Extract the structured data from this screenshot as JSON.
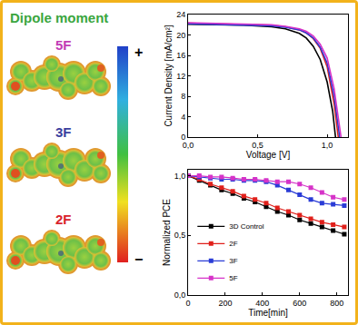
{
  "panel": {
    "title": "Dipole moment",
    "molecules": [
      {
        "label": "5F",
        "color": "#c23bb5"
      },
      {
        "label": "3F",
        "color": "#3a3f9e"
      },
      {
        "label": "2F",
        "color": "#d9232e"
      }
    ],
    "scale_labels": [
      "+",
      "−"
    ]
  },
  "chart_data": [
    {
      "type": "line",
      "x_title": "Voltage [V]",
      "y_title": "Current Density [mA/cm²]",
      "xlim": [
        0,
        1.15
      ],
      "xticks": [
        {
          "value": 0,
          "label": "0,0"
        },
        {
          "value": 0.5,
          "label": "0,5"
        },
        {
          "value": 1.0,
          "label": "1,0"
        }
      ],
      "ylim": [
        0,
        24
      ],
      "yticks": [
        0,
        4,
        8,
        12,
        16,
        20,
        24
      ],
      "grid": false,
      "series": [
        {
          "color": "#000000",
          "line_style": "solid",
          "x": [
            0,
            0.2,
            0.4,
            0.6,
            0.7,
            0.8,
            0.85,
            0.9,
            0.95,
            1.0,
            1.04,
            1.06
          ],
          "values": [
            22.1,
            22.0,
            21.9,
            21.6,
            21.2,
            20.3,
            19.4,
            17.8,
            15.2,
            10.8,
            5.0,
            0
          ]
        },
        {
          "color": "#e0201b",
          "line_style": "solid",
          "x": [
            0,
            0.2,
            0.4,
            0.6,
            0.7,
            0.8,
            0.85,
            0.9,
            0.95,
            1.0,
            1.05,
            1.08
          ],
          "values": [
            22.3,
            22.2,
            22.1,
            21.9,
            21.6,
            21.0,
            20.4,
            19.3,
            17.4,
            13.8,
            6.5,
            0
          ]
        },
        {
          "color": "#2a3cd6",
          "line_style": "solid",
          "x": [
            0,
            0.2,
            0.4,
            0.6,
            0.7,
            0.8,
            0.85,
            0.9,
            0.95,
            1.0,
            1.05,
            1.09
          ],
          "values": [
            22.2,
            22.1,
            22.0,
            21.8,
            21.5,
            21.0,
            20.4,
            19.4,
            17.6,
            14.5,
            8.0,
            0
          ]
        },
        {
          "color": "#d633c8",
          "line_style": "solid",
          "x": [
            0,
            0.2,
            0.4,
            0.6,
            0.7,
            0.8,
            0.85,
            0.9,
            0.95,
            1.0,
            1.05,
            1.1
          ],
          "values": [
            22.4,
            22.3,
            22.2,
            22.0,
            21.7,
            21.2,
            20.7,
            19.8,
            18.2,
            15.5,
            9.5,
            0
          ]
        }
      ]
    },
    {
      "type": "line",
      "x_title": "Time[min]",
      "y_title": "Normalized PCE",
      "x": [
        0,
        60,
        120,
        180,
        240,
        300,
        360,
        420,
        480,
        540,
        600,
        660,
        720,
        780,
        840
      ],
      "xlim": [
        0,
        860
      ],
      "xticks": [
        0,
        200,
        400,
        600,
        800
      ],
      "ylim": [
        0,
        1.05
      ],
      "yticks": [
        {
          "value": 0,
          "label": "0,0"
        },
        {
          "value": 0.5,
          "label": "0,5"
        },
        {
          "value": 1.0,
          "label": "1,0"
        }
      ],
      "grid": false,
      "legend": "lower left",
      "series": [
        {
          "name": "3D Control",
          "color": "#000000",
          "marker": "square",
          "line_style": "solid",
          "values": [
            1.0,
            0.96,
            0.92,
            0.88,
            0.85,
            0.81,
            0.78,
            0.74,
            0.7,
            0.67,
            0.63,
            0.6,
            0.57,
            0.54,
            0.51
          ]
        },
        {
          "name": "2F",
          "color": "#e0201b",
          "marker": "square",
          "line_style": "solid",
          "values": [
            1.0,
            0.97,
            0.93,
            0.9,
            0.87,
            0.83,
            0.8,
            0.77,
            0.73,
            0.7,
            0.67,
            0.64,
            0.61,
            0.59,
            0.57
          ]
        },
        {
          "name": "3F",
          "color": "#2a3cd6",
          "marker": "square",
          "line_style": "solid",
          "values": [
            1.0,
            0.99,
            0.98,
            0.97,
            0.97,
            0.96,
            0.96,
            0.95,
            0.92,
            0.88,
            0.84,
            0.8,
            0.77,
            0.76,
            0.75
          ]
        },
        {
          "name": "5F",
          "color": "#d633c8",
          "marker": "square",
          "line_style": "solid",
          "values": [
            1.0,
            1.0,
            0.99,
            0.99,
            0.98,
            0.97,
            0.97,
            0.96,
            0.95,
            0.95,
            0.93,
            0.9,
            0.86,
            0.82,
            0.8
          ]
        }
      ]
    }
  ]
}
